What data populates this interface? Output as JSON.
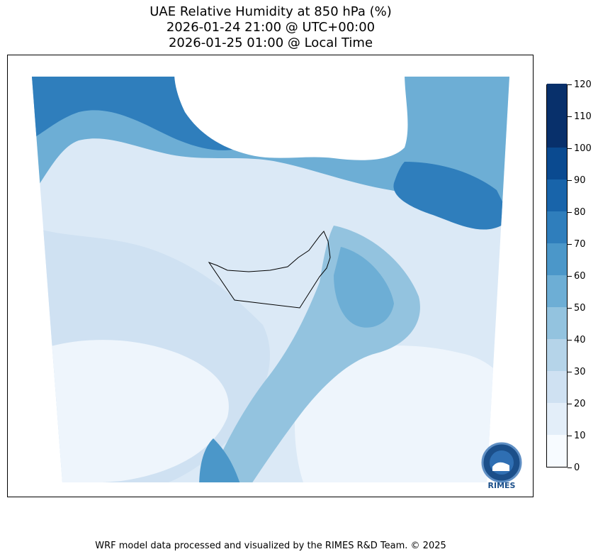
{
  "title": {
    "line1": "UAE Relative Humidity at 850 hPa (%)",
    "line2": "2026-01-24 21:00 @ UTC+00:00",
    "line3": "2026-01-25 01:00 @ Local Time"
  },
  "colorbar": {
    "ticks": [
      "0",
      "10",
      "20",
      "30",
      "40",
      "50",
      "60",
      "70",
      "80",
      "90",
      "100",
      "110",
      "120"
    ],
    "colors": [
      "#f7fbff",
      "#e3eef9",
      "#cfe1f2",
      "#b5d4e9",
      "#93c3df",
      "#6daed5",
      "#4b97c9",
      "#2f7ebc",
      "#1864aa",
      "#0a4a90",
      "#08306b",
      "#08306b"
    ]
  },
  "logo": {
    "text": "RIMES"
  },
  "footer": "WRF model data processed and visualized by the RIMES R&D Team. © 2025"
}
